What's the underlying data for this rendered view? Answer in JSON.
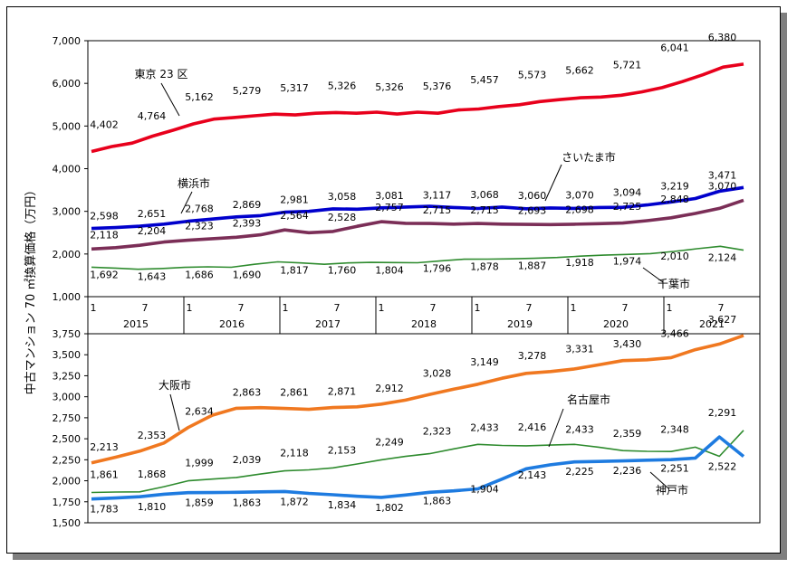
{
  "chart_data": [
    {
      "type": "line",
      "ylabel": "中古マンション 70 ㎡換算価格（万円）",
      "ylim": [
        1000,
        7000
      ],
      "yticks": [
        "1,000",
        "2,000",
        "3,000",
        "4,000",
        "5,000",
        "6,000",
        "7,000"
      ],
      "x_month_ticks": [
        "1",
        "7",
        "1",
        "7",
        "1",
        "7",
        "1",
        "7",
        "1",
        "7",
        "1",
        "7",
        "1",
        "7"
      ],
      "x_years": [
        "2015",
        "2016",
        "2017",
        "2018",
        "2019",
        "2020",
        "2021"
      ],
      "grid": false,
      "series": [
        {
          "name": "東京 23 区",
          "color": "#e8001c",
          "values": [
            4402,
            4520,
            4600,
            4764,
            4900,
            5050,
            5162,
            5200,
            5240,
            5279,
            5260,
            5300,
            5317,
            5300,
            5326,
            5280,
            5326,
            5300,
            5376,
            5400,
            5457,
            5500,
            5573,
            5620,
            5662,
            5680,
            5721,
            5800,
            5900,
            6041,
            6200,
            6380,
            6450
          ],
          "labels": [
            "4,402",
            "4,764",
            "5,162",
            "5,279",
            "5,317",
            "5,326",
            "5,326",
            "5,376",
            "5,457",
            "5,573",
            "5,662",
            "5,721",
            "6,041",
            "6,380"
          ]
        },
        {
          "name": "さいたま市",
          "color": "#0000cc",
          "values": [
            2598,
            2620,
            2651,
            2700,
            2768,
            2820,
            2869,
            2900,
            2981,
            3000,
            3058,
            3050,
            3081,
            3100,
            3117,
            3090,
            3068,
            3100,
            3060,
            3080,
            3070,
            3090,
            3094,
            3150,
            3219,
            3300,
            3471,
            3560
          ],
          "labels": [
            "2,598",
            "2,651",
            "2,768",
            "2,869",
            "2,981",
            "3,058",
            "3,081",
            "3,117",
            "3,068",
            "3,060",
            "3,070",
            "3,094",
            "3,219",
            "3,471"
          ]
        },
        {
          "name": "横浜市",
          "color": "#7b2e57",
          "values": [
            2118,
            2150,
            2204,
            2280,
            2323,
            2360,
            2393,
            2450,
            2564,
            2500,
            2528,
            2650,
            2757,
            2720,
            2715,
            2700,
            2715,
            2700,
            2693,
            2690,
            2698,
            2710,
            2725,
            2780,
            2848,
            2950,
            3070,
            3260
          ],
          "labels": [
            "2,118",
            "2,204",
            "2,323",
            "2,393",
            "2,564",
            "2,528",
            "2,757",
            "2,715",
            "2,715",
            "2,693",
            "2,698",
            "2,725",
            "2,848",
            "3,070"
          ]
        },
        {
          "name": "千葉市",
          "color": "#2e8b2e",
          "values": [
            1692,
            1670,
            1643,
            1660,
            1686,
            1700,
            1690,
            1760,
            1817,
            1790,
            1760,
            1790,
            1804,
            1800,
            1796,
            1840,
            1878,
            1880,
            1887,
            1900,
            1918,
            1950,
            1974,
            1990,
            2010,
            2060,
            2124,
            2180,
            2090
          ],
          "labels": [
            "1,692",
            "1,643",
            "1,686",
            "1,690",
            "1,817",
            "1,760",
            "1,804",
            "1,796",
            "1,878",
            "1,887",
            "1,918",
            "1,974",
            "2,010",
            "2,124"
          ]
        }
      ]
    },
    {
      "type": "line",
      "ylim": [
        1500,
        3750
      ],
      "yticks": [
        "1,500",
        "1,750",
        "2,000",
        "2,250",
        "2,500",
        "2,750",
        "3,000",
        "3,250",
        "3,500",
        "3,750"
      ],
      "grid": false,
      "series": [
        {
          "name": "大阪市",
          "color": "#f07820",
          "values": [
            2213,
            2280,
            2353,
            2450,
            2634,
            2780,
            2863,
            2870,
            2861,
            2850,
            2871,
            2880,
            2912,
            2960,
            3028,
            3090,
            3149,
            3220,
            3278,
            3300,
            3331,
            3380,
            3430,
            3440,
            3466,
            3560,
            3627,
            3730
          ],
          "labels": [
            "2,213",
            "2,353",
            "2,634",
            "2,863",
            "2,861",
            "2,871",
            "2,912",
            "3,028",
            "3,149",
            "3,278",
            "3,331",
            "3,430",
            "3,466",
            "3,627"
          ]
        },
        {
          "name": "名古屋市",
          "color": "#2e8b2e",
          "values": [
            1861,
            1866,
            1868,
            1930,
            1999,
            2020,
            2039,
            2080,
            2118,
            2130,
            2153,
            2200,
            2249,
            2290,
            2323,
            2380,
            2433,
            2420,
            2416,
            2425,
            2433,
            2400,
            2359,
            2350,
            2348,
            2400,
            2291,
            2600
          ],
          "labels": [
            "1,861",
            "1,868",
            "1,999",
            "2,039",
            "2,118",
            "2,153",
            "2,249",
            "2,323",
            "2,433",
            "2,416",
            "2,433",
            "2,359",
            "2,348",
            "2,291"
          ]
        },
        {
          "name": "神戸市",
          "color": "#1e7be0",
          "values": [
            1783,
            1795,
            1810,
            1840,
            1859,
            1860,
            1863,
            1868,
            1872,
            1850,
            1834,
            1815,
            1802,
            1830,
            1863,
            1880,
            1904,
            2020,
            2143,
            2190,
            2225,
            2230,
            2236,
            2245,
            2251,
            2270,
            2522,
            2290
          ],
          "labels": [
            "1,783",
            "1,810",
            "1,859",
            "1,863",
            "1,872",
            "1,834",
            "1,802",
            "1,863",
            "1,904",
            "2,143",
            "2,225",
            "2,236",
            "2,251",
            "2,522"
          ]
        }
      ]
    }
  ]
}
